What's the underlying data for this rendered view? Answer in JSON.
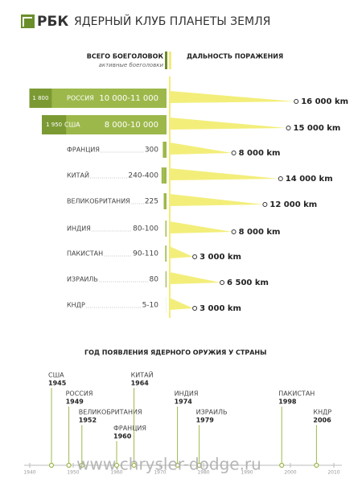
{
  "logo": "РБК",
  "title": "ЯДЕРНЫЙ КЛУБ ПЛАНЕТЫ ЗЕМЛЯ",
  "header_warheads": "ВСЕГО БОЕГОЛОВОК",
  "header_active": "активные боеголовки",
  "header_range": "ДАЛЬНОСТЬ ПОРАЖЕНИЯ",
  "countries": [
    {
      "name": "РОССИЯ",
      "warheads": {
        "min": 10000,
        "max": 11000,
        "label": "10 000-11 000"
      },
      "active": {
        "value": 1800,
        "label": "1 800"
      },
      "range": {
        "value": 16000,
        "label": "16 000 km"
      }
    },
    {
      "name": "США",
      "warheads": {
        "min": 8000,
        "max": 10000,
        "label": "8 000-10 000"
      },
      "active": {
        "value": 1950,
        "label": "1 950"
      },
      "range": {
        "value": 15000,
        "label": "15 000 km"
      }
    },
    {
      "name": "ФРАНЦИЯ",
      "warheads": {
        "min": 300,
        "max": 300,
        "label": "300"
      },
      "range": {
        "value": 8000,
        "label": "8 000 km"
      }
    },
    {
      "name": "КИТАЙ",
      "warheads": {
        "min": 240,
        "max": 400,
        "label": "240-400"
      },
      "range": {
        "value": 14000,
        "label": "14 000 km"
      }
    },
    {
      "name": "ВЕЛИКОБРИТАНИЯ",
      "warheads": {
        "min": 225,
        "max": 225,
        "label": "225"
      },
      "range": {
        "value": 12000,
        "label": "12 000 km"
      }
    },
    {
      "name": "ИНДИЯ",
      "warheads": {
        "min": 80,
        "max": 100,
        "label": "80-100"
      },
      "range": {
        "value": 8000,
        "label": "8 000 km"
      }
    },
    {
      "name": "ПАКИСТАН",
      "warheads": {
        "min": 90,
        "max": 110,
        "label": "90-110"
      },
      "range": {
        "value": 3000,
        "label": "3 000 km"
      }
    },
    {
      "name": "ИЗРАИЛЬ",
      "warheads": {
        "min": 80,
        "max": 80,
        "label": "80"
      },
      "range": {
        "value": 6500,
        "label": "6 500 km"
      }
    },
    {
      "name": "КНДР",
      "warheads": {
        "min": 5,
        "max": 10,
        "label": "5-10"
      },
      "range": {
        "value": 3000,
        "label": "3 000 km"
      }
    }
  ],
  "timeline": {
    "title": "ГОД ПОЯВЛЕНИЯ ЯДЕРНОГО ОРУЖИЯ У СТРАНЫ",
    "xlim": [
      1940,
      2010
    ],
    "xticks": [
      1940,
      1950,
      1960,
      1970,
      1980,
      1990,
      2000,
      2010
    ],
    "events": [
      {
        "country": "США",
        "year": 1945
      },
      {
        "country": "РОССИЯ",
        "year": 1949
      },
      {
        "country": "ВЕЛИКОБРИТАНИЯ",
        "year": 1952
      },
      {
        "country": "ФРАНЦИЯ",
        "year": 1960
      },
      {
        "country": "КИТАЙ",
        "year": 1964
      },
      {
        "country": "ИНДИЯ",
        "year": 1974
      },
      {
        "country": "ИЗРАИЛЬ",
        "year": 1979
      },
      {
        "country": "ПАКИСТАН",
        "year": 1998
      },
      {
        "country": "КНДР",
        "year": 2006
      }
    ]
  },
  "watermark": "www.chrysler-dodge.ru"
}
